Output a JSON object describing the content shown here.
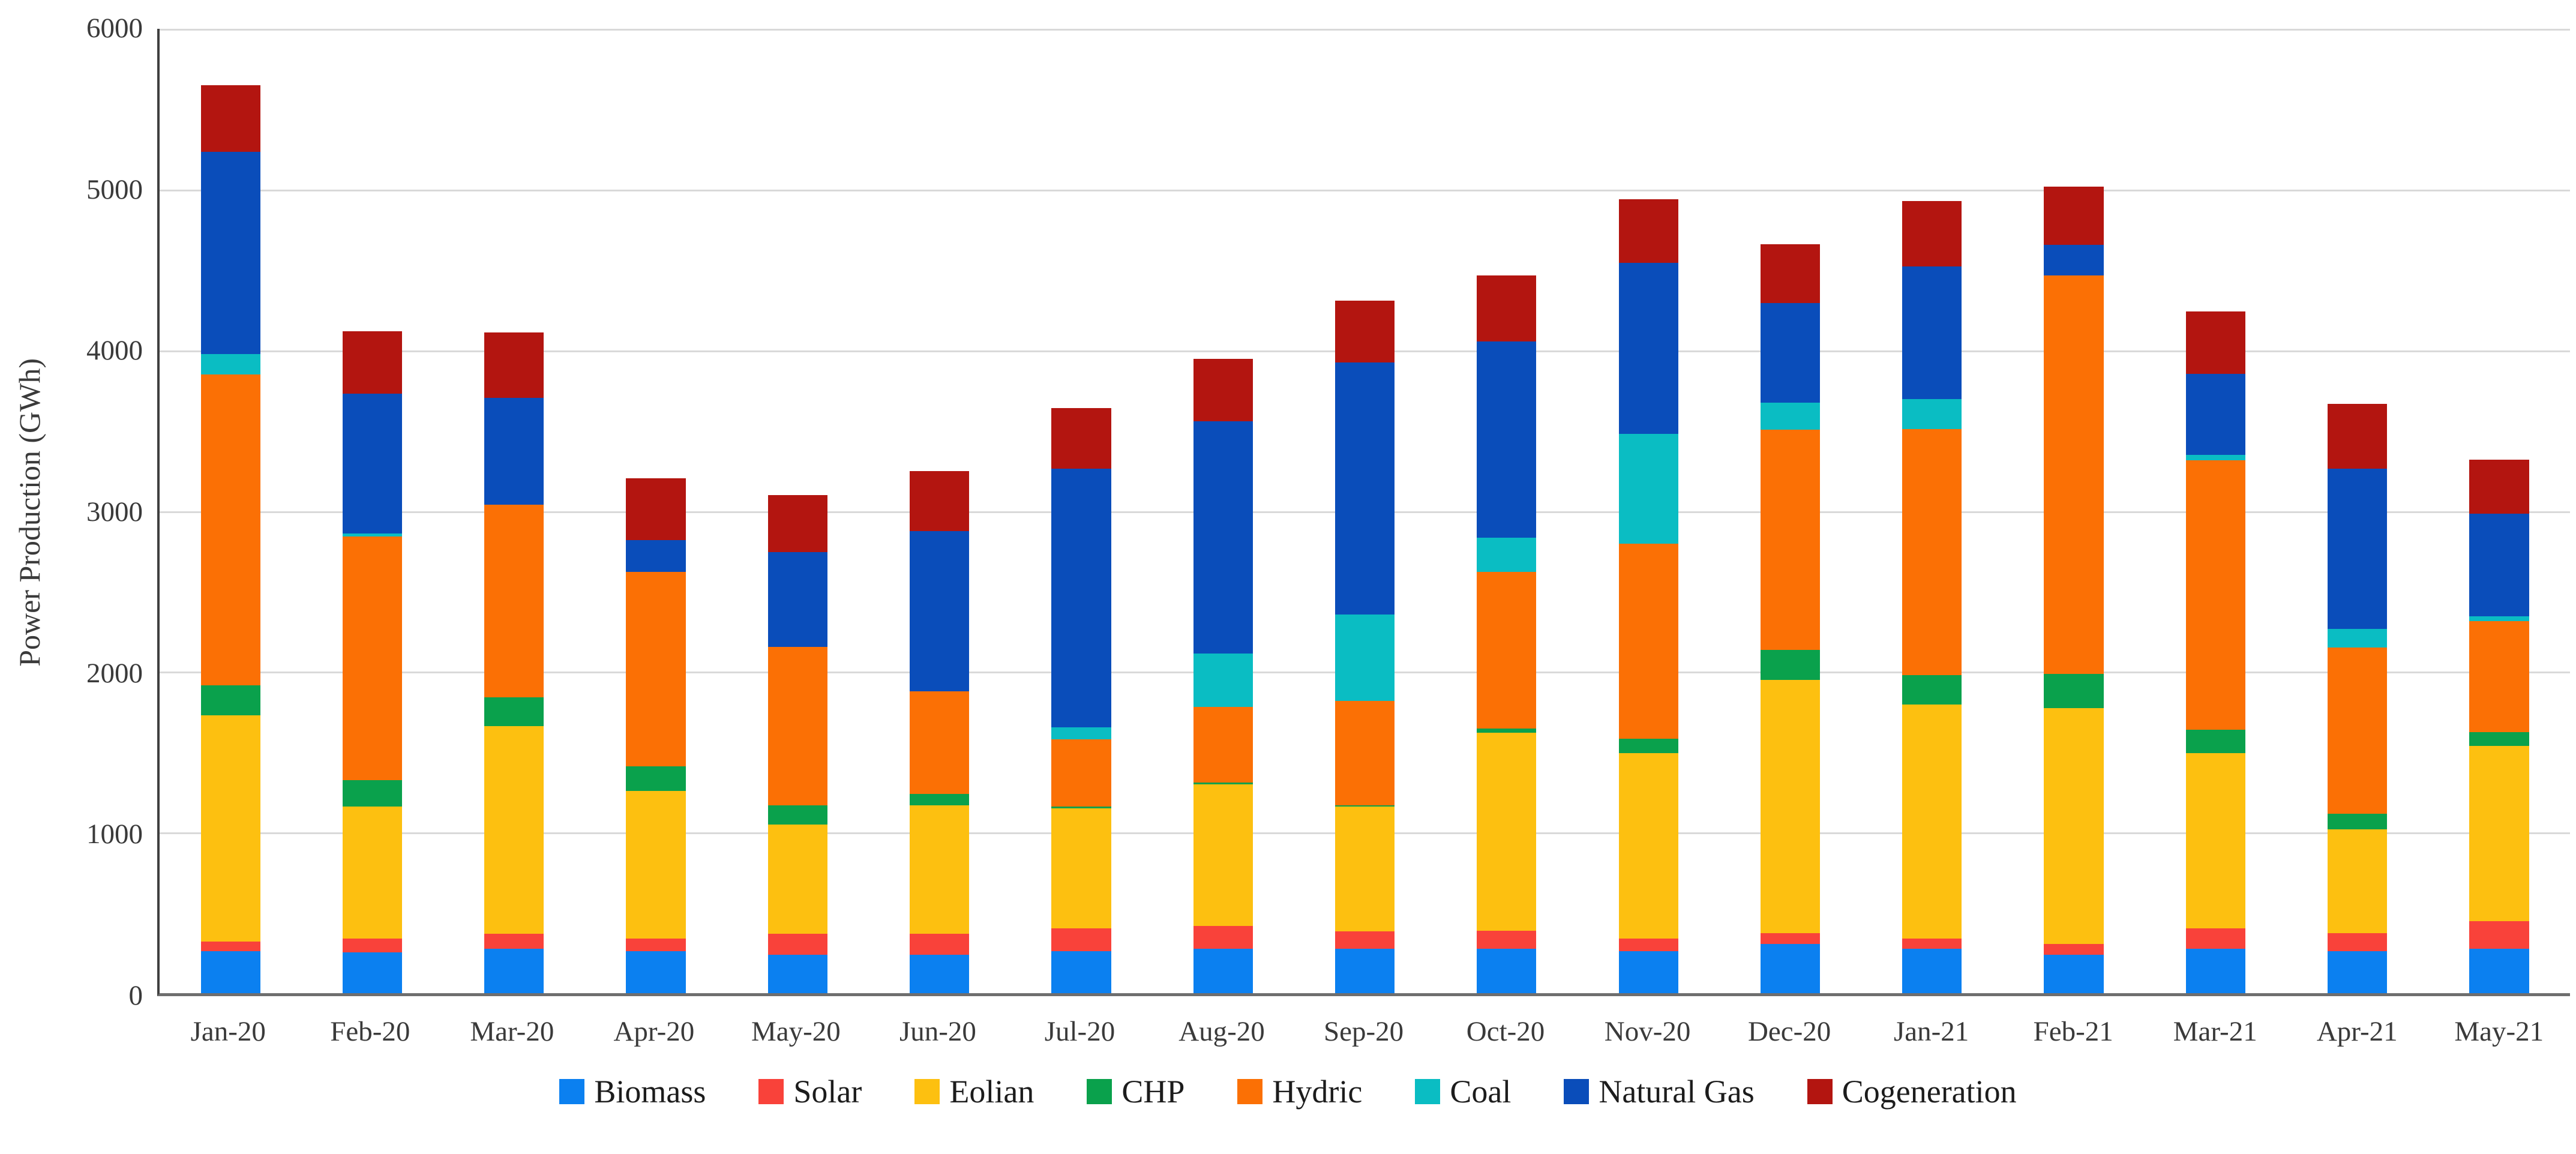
{
  "y_axis": {
    "title": "Power Production (GWh)",
    "ticks": [
      "0",
      "1000",
      "2000",
      "3000",
      "4000",
      "5000",
      "6000"
    ]
  },
  "chart_data": {
    "type": "bar",
    "stacked": true,
    "title": "",
    "xlabel": "",
    "ylabel": "Power Production (GWh)",
    "ylim": [
      0,
      6000
    ],
    "y_tick_step": 1000,
    "grid": true,
    "legend_position": "bottom",
    "categories": [
      "Jan-20",
      "Feb-20",
      "Mar-20",
      "Apr-20",
      "May-20",
      "Jun-20",
      "Jul-20",
      "Aug-20",
      "Sep-20",
      "Oct-20",
      "Nov-20",
      "Dec-20",
      "Jan-21",
      "Feb-21",
      "Mar-21",
      "Apr-21",
      "May-21"
    ],
    "series": [
      {
        "name": "Biomass",
        "color": "#0B80F0",
        "values": [
          260,
          255,
          275,
          260,
          240,
          240,
          260,
          275,
          275,
          275,
          260,
          305,
          275,
          240,
          275,
          260,
          275
        ]
      },
      {
        "name": "Solar",
        "color": "#F9423A",
        "values": [
          60,
          85,
          95,
          80,
          130,
          130,
          145,
          145,
          110,
          115,
          80,
          70,
          65,
          65,
          130,
          115,
          175
        ]
      },
      {
        "name": "Eolian",
        "color": "#FDC010",
        "values": [
          1410,
          820,
          1290,
          920,
          680,
          800,
          745,
          880,
          775,
          1230,
          1155,
          1575,
          1455,
          1470,
          1090,
          645,
          1090
        ]
      },
      {
        "name": "CHP",
        "color": "#0AA14C",
        "values": [
          185,
          165,
          180,
          150,
          120,
          70,
          10,
          10,
          10,
          25,
          90,
          185,
          185,
          210,
          145,
          95,
          85
        ]
      },
      {
        "name": "Hydric",
        "color": "#FB7005",
        "values": [
          1935,
          1515,
          1200,
          1210,
          985,
          640,
          420,
          470,
          650,
          975,
          1210,
          1370,
          1530,
          2480,
          1675,
          1035,
          690
        ]
      },
      {
        "name": "Coal",
        "color": "#0ABDC3",
        "values": [
          125,
          20,
          0,
          0,
          0,
          0,
          75,
          335,
          535,
          215,
          685,
          170,
          185,
          0,
          35,
          115,
          30
        ]
      },
      {
        "name": "Natural Gas",
        "color": "#0A4DBA",
        "values": [
          1260,
          870,
          665,
          200,
          590,
          995,
          1610,
          1445,
          1570,
          1220,
          1065,
          620,
          825,
          190,
          505,
          1000,
          640
        ]
      },
      {
        "name": "Cogeneration",
        "color": "#B31510",
        "values": [
          415,
          390,
          405,
          385,
          355,
          375,
          375,
          385,
          385,
          410,
          395,
          365,
          410,
          365,
          385,
          400,
          335
        ]
      }
    ],
    "totals": [
      5650,
      4120,
      4110,
      3205,
      3100,
      3250,
      3640,
      3945,
      4310,
      4465,
      4940,
      4660,
      4930,
      5020,
      4240,
      3665,
      3320
    ]
  }
}
